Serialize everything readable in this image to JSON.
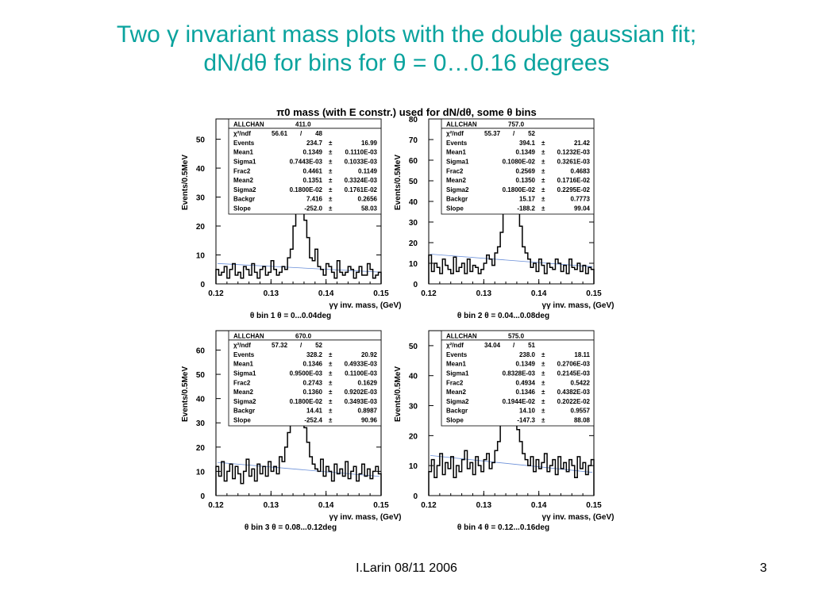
{
  "slide": {
    "title_line1": "Two γ invariant mass plots with the double gaussian fit;",
    "title_line2": "dN/dθ for bins for θ = 0…0.16 degrees",
    "figure_title": "π0 mass (with E constr.) used for dN/dθ, some θ bins",
    "footer_author": "I.Larin 08/11 2006",
    "footer_page": "3"
  },
  "colors": {
    "title": "#0aa39e",
    "histogram": "#000000",
    "fit": "#6a8fd8"
  },
  "chart_data": [
    {
      "type": "histogram",
      "title": "",
      "ylabel": "Events/0.5MeV",
      "xlabel": "γγ inv. mass, (GeV)",
      "bin_label": "θ bin 1     θ = 0...0.04deg",
      "xlim": [
        0.12,
        0.15
      ],
      "ylim": [
        0,
        57
      ],
      "xticks": [
        "0.12",
        "0.13",
        "0.14",
        "0.15"
      ],
      "yticks": [
        0,
        10,
        20,
        30,
        40,
        50
      ],
      "x": [
        0.1205,
        0.121,
        0.1215,
        0.122,
        0.1225,
        0.123,
        0.1235,
        0.124,
        0.1245,
        0.125,
        0.1255,
        0.126,
        0.1265,
        0.127,
        0.1275,
        0.128,
        0.1285,
        0.129,
        0.1295,
        0.13,
        0.1305,
        0.131,
        0.1315,
        0.132,
        0.1325,
        0.133,
        0.1335,
        0.134,
        0.1345,
        0.135,
        0.1355,
        0.136,
        0.1365,
        0.137,
        0.1375,
        0.138,
        0.1385,
        0.139,
        0.1395,
        0.14,
        0.1405,
        0.141,
        0.1415,
        0.142,
        0.1425,
        0.143,
        0.1435,
        0.144,
        0.1445,
        0.145,
        0.1455,
        0.146,
        0.1465,
        0.147,
        0.1475,
        0.148,
        0.1485,
        0.149,
        0.1495,
        0.15
      ],
      "counts": [
        5,
        3,
        4,
        6,
        2,
        5,
        7,
        3,
        4,
        2,
        6,
        5,
        3,
        7,
        4,
        2,
        5,
        6,
        3,
        4,
        8,
        5,
        3,
        4,
        6,
        5,
        9,
        12,
        20,
        47,
        52,
        40,
        22,
        16,
        9,
        8,
        12,
        6,
        5,
        3,
        7,
        6,
        4,
        2,
        8,
        4,
        3,
        4,
        6,
        5,
        2,
        4,
        6,
        3,
        3,
        7,
        5,
        2,
        3,
        4
      ],
      "stats": {
        "header": [
          "ALLCHAN",
          "411.0"
        ],
        "chi2": [
          "χ²/ndf",
          "56.61",
          "/",
          "48"
        ],
        "rows": [
          [
            "Events",
            "234.7",
            "±",
            "16.99"
          ],
          [
            "Mean1",
            "0.1349",
            "±",
            "0.1110E-03"
          ],
          [
            "Sigma1",
            "0.7443E-03",
            "±",
            "0.1033E-03"
          ],
          [
            "Frac2",
            "0.4461",
            "±",
            "0.1149"
          ],
          [
            "Mean2",
            "0.1351",
            "±",
            "0.3324E-03"
          ],
          [
            "Sigma2",
            "0.1800E-02",
            "±",
            "0.1761E-02"
          ],
          [
            "Backgr",
            "7.416",
            "±",
            "0.2656"
          ],
          [
            "Slope",
            "-252.0",
            "±",
            "58.03"
          ]
        ]
      }
    },
    {
      "type": "histogram",
      "title": "",
      "ylabel": "Events/0.5MeV",
      "xlabel": "γγ inv. mass, (GeV)",
      "bin_label": "θ bin 2     θ = 0.04...0.08deg",
      "xlim": [
        0.12,
        0.15
      ],
      "ylim": [
        0,
        80
      ],
      "xticks": [
        "0.12",
        "0.13",
        "0.14",
        "0.15"
      ],
      "yticks": [
        0,
        10,
        20,
        30,
        40,
        50,
        60,
        70,
        80
      ],
      "x": [
        0.1205,
        0.121,
        0.1215,
        0.122,
        0.1225,
        0.123,
        0.1235,
        0.124,
        0.1245,
        0.125,
        0.1255,
        0.126,
        0.1265,
        0.127,
        0.1275,
        0.128,
        0.1285,
        0.129,
        0.1295,
        0.13,
        0.1305,
        0.131,
        0.1315,
        0.132,
        0.1325,
        0.133,
        0.1335,
        0.134,
        0.1345,
        0.135,
        0.1355,
        0.136,
        0.1365,
        0.137,
        0.1375,
        0.138,
        0.1385,
        0.139,
        0.1395,
        0.14,
        0.1405,
        0.141,
        0.1415,
        0.142,
        0.1425,
        0.143,
        0.1435,
        0.144,
        0.1445,
        0.145,
        0.1455,
        0.146,
        0.1465,
        0.147,
        0.1475,
        0.148,
        0.1485,
        0.149,
        0.1495,
        0.15
      ],
      "counts": [
        14,
        6,
        10,
        8,
        5,
        12,
        9,
        7,
        5,
        13,
        6,
        8,
        10,
        5,
        12,
        6,
        9,
        8,
        5,
        7,
        10,
        14,
        12,
        9,
        15,
        18,
        25,
        45,
        68,
        75,
        72,
        58,
        42,
        28,
        18,
        15,
        12,
        8,
        10,
        6,
        12,
        9,
        5,
        10,
        8,
        7,
        12,
        10,
        6,
        9,
        5,
        12,
        8,
        7,
        10,
        6,
        9,
        5,
        8,
        7
      ],
      "stats": {
        "header": [
          "ALLCHAN",
          "757.0"
        ],
        "chi2": [
          "χ²/ndf",
          "55.37",
          "/",
          "52"
        ],
        "rows": [
          [
            "Events",
            "394.1",
            "±",
            "21.42"
          ],
          [
            "Mean1",
            "0.1349",
            "±",
            "0.1232E-03"
          ],
          [
            "Sigma1",
            "0.1080E-02",
            "±",
            "0.3261E-03"
          ],
          [
            "Frac2",
            "0.2569",
            "±",
            "0.4683"
          ],
          [
            "Mean2",
            "0.1350",
            "±",
            "0.1716E-02"
          ],
          [
            "Sigma2",
            "0.1800E-02",
            "±",
            "0.2295E-02"
          ],
          [
            "Backgr",
            "15.17",
            "±",
            "0.7773"
          ],
          [
            "Slope",
            "-188.2",
            "±",
            "99.04"
          ]
        ]
      }
    },
    {
      "type": "histogram",
      "title": "",
      "ylabel": "Events/0.5MeV",
      "xlabel": "γγ inv. mass, (GeV)",
      "bin_label": "θ bin 3     θ = 0.08...0.12deg",
      "xlim": [
        0.12,
        0.15
      ],
      "ylim": [
        0,
        68
      ],
      "xticks": [
        "0.12",
        "0.13",
        "0.14",
        "0.15"
      ],
      "yticks": [
        0,
        10,
        20,
        30,
        40,
        50,
        60
      ],
      "x": [
        0.1205,
        0.121,
        0.1215,
        0.122,
        0.1225,
        0.123,
        0.1235,
        0.124,
        0.1245,
        0.125,
        0.1255,
        0.126,
        0.1265,
        0.127,
        0.1275,
        0.128,
        0.1285,
        0.129,
        0.1295,
        0.13,
        0.1305,
        0.131,
        0.1315,
        0.132,
        0.1325,
        0.133,
        0.1335,
        0.134,
        0.1345,
        0.135,
        0.1355,
        0.136,
        0.1365,
        0.137,
        0.1375,
        0.138,
        0.1385,
        0.139,
        0.1395,
        0.14,
        0.1405,
        0.141,
        0.1415,
        0.142,
        0.1425,
        0.143,
        0.1435,
        0.144,
        0.1445,
        0.145,
        0.1455,
        0.146,
        0.1465,
        0.147,
        0.1475,
        0.148,
        0.1485,
        0.149,
        0.1495,
        0.15
      ],
      "counts": [
        12,
        8,
        14,
        6,
        10,
        13,
        7,
        12,
        9,
        5,
        10,
        15,
        8,
        11,
        6,
        13,
        9,
        12,
        8,
        14,
        10,
        12,
        9,
        16,
        14,
        20,
        26,
        42,
        62,
        66,
        56,
        44,
        28,
        22,
        16,
        13,
        11,
        10,
        15,
        8,
        12,
        10,
        6,
        13,
        9,
        11,
        8,
        14,
        7,
        10,
        12,
        6,
        9,
        13,
        8,
        11,
        7,
        10,
        12,
        9
      ],
      "stats": {
        "header": [
          "ALLCHAN",
          "670.0"
        ],
        "chi2": [
          "χ²/ndf",
          "57.32",
          "/",
          "52"
        ],
        "rows": [
          [
            "Events",
            "328.2",
            "±",
            "20.92"
          ],
          [
            "Mean1",
            "0.1346",
            "±",
            "0.4933E-03"
          ],
          [
            "Sigma1",
            "0.9500E-03",
            "±",
            "0.1100E-03"
          ],
          [
            "Frac2",
            "0.2743",
            "±",
            "0.1629"
          ],
          [
            "Mean2",
            "0.1360",
            "±",
            "0.9202E-03"
          ],
          [
            "Sigma2",
            "0.1800E-02",
            "±",
            "0.3493E-03"
          ],
          [
            "Backgr",
            "14.41",
            "±",
            "0.8987"
          ],
          [
            "Slope",
            "-252.4",
            "±",
            "90.96"
          ]
        ]
      }
    },
    {
      "type": "histogram",
      "title": "",
      "ylabel": "Events/0.5MeV",
      "xlabel": "γγ inv. mass, (GeV)",
      "bin_label": "θ bin 4     θ = 0.12...0.16deg",
      "xlim": [
        0.12,
        0.15
      ],
      "ylim": [
        0,
        55
      ],
      "xticks": [
        "0.12",
        "0.13",
        "0.14",
        "0.15"
      ],
      "yticks": [
        0,
        10,
        20,
        30,
        40,
        50
      ],
      "x": [
        0.1205,
        0.121,
        0.1215,
        0.122,
        0.1225,
        0.123,
        0.1235,
        0.124,
        0.1245,
        0.125,
        0.1255,
        0.126,
        0.1265,
        0.127,
        0.1275,
        0.128,
        0.1285,
        0.129,
        0.1295,
        0.13,
        0.1305,
        0.131,
        0.1315,
        0.132,
        0.1325,
        0.133,
        0.1335,
        0.134,
        0.1345,
        0.135,
        0.1355,
        0.136,
        0.1365,
        0.137,
        0.1375,
        0.138,
        0.1385,
        0.139,
        0.1395,
        0.14,
        0.1405,
        0.141,
        0.1415,
        0.142,
        0.1425,
        0.143,
        0.1435,
        0.144,
        0.1445,
        0.145,
        0.1455,
        0.146,
        0.1465,
        0.147,
        0.1475,
        0.148,
        0.1485,
        0.149,
        0.1495,
        0.15
      ],
      "counts": [
        8,
        12,
        6,
        10,
        14,
        7,
        11,
        9,
        13,
        6,
        10,
        8,
        12,
        15,
        9,
        11,
        7,
        13,
        10,
        8,
        12,
        14,
        9,
        11,
        15,
        18,
        24,
        36,
        52,
        50,
        40,
        30,
        22,
        18,
        14,
        12,
        10,
        13,
        8,
        12,
        9,
        11,
        14,
        8,
        10,
        12,
        7,
        13,
        9,
        11,
        8,
        12,
        10,
        6,
        13,
        9,
        11,
        7,
        10,
        12
      ],
      "stats": {
        "header": [
          "ALLCHAN",
          "575.0"
        ],
        "chi2": [
          "χ²/ndf",
          "34.04",
          "/",
          "51"
        ],
        "rows": [
          [
            "Events",
            "238.0",
            "±",
            "18.11"
          ],
          [
            "Mean1",
            "0.1349",
            "±",
            "0.2706E-03"
          ],
          [
            "Sigma1",
            "0.8328E-03",
            "±",
            "0.2145E-03"
          ],
          [
            "Frac2",
            "0.4934",
            "±",
            "0.5422"
          ],
          [
            "Mean2",
            "0.1346",
            "±",
            "0.4382E-03"
          ],
          [
            "Sigma2",
            "0.1944E-02",
            "±",
            "0.2022E-02"
          ],
          [
            "Backgr",
            "14.10",
            "±",
            "0.9557"
          ],
          [
            "Slope",
            "-147.3",
            "±",
            "88.08"
          ]
        ]
      }
    }
  ]
}
